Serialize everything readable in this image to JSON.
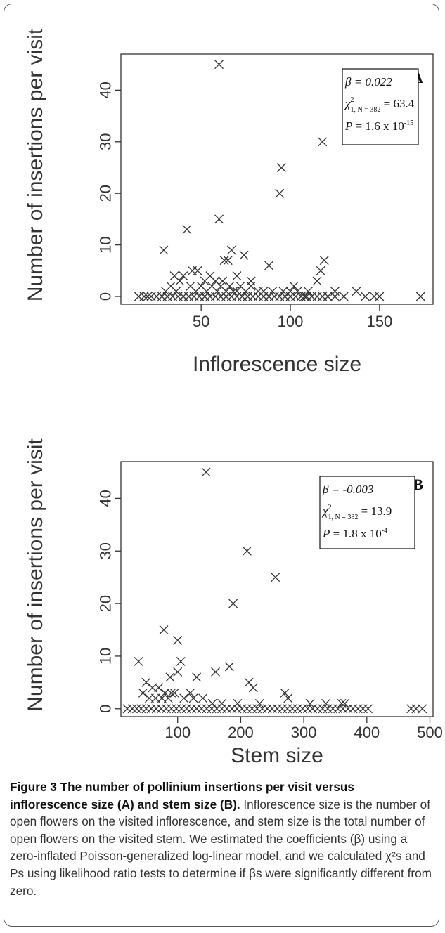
{
  "figure": {
    "caption_title": "Figure 3 The number of pollinium insertions per visit versus inflorescence size (A) and stem size (B).",
    "caption_body": "Inflorescence size is the number of open flowers on the visited inflorescence, and stem size is the total number of open flowers on the visited stem. We estimated the coefficients (β) using a zero-inflated Poisson-generalized log-linear model, and we calculated χ²s and Ps using likelihood ratio tests to determine if βs were significantly different from zero."
  },
  "chart_data": [
    {
      "type": "scatter",
      "panel": "A",
      "xlabel": "Inflorescence size",
      "ylabel": "Number of insertions per visit",
      "xlim": [
        5,
        180
      ],
      "ylim": [
        -1.5,
        47
      ],
      "xticks": [
        50,
        100,
        150
      ],
      "yticks": [
        0,
        10,
        20,
        30,
        40
      ],
      "marker": "x",
      "stats": {
        "beta": "β = 0.022",
        "chi_prefix": "χ",
        "chi_sup": "2",
        "chi_sub": "1, N = 382",
        "chi_value": " = 63.4",
        "p_prefix": "P",
        "p_value": " = 1.6 x 10",
        "p_exp": "-15"
      },
      "points": [
        [
          60,
          45
        ],
        [
          118,
          30
        ],
        [
          95,
          25
        ],
        [
          94,
          20
        ],
        [
          60,
          15
        ],
        [
          42,
          13
        ],
        [
          29,
          9
        ],
        [
          67,
          9
        ],
        [
          88,
          6
        ],
        [
          74,
          8
        ],
        [
          63,
          7
        ],
        [
          65,
          7
        ],
        [
          119,
          7
        ],
        [
          117,
          5
        ],
        [
          115,
          3
        ],
        [
          45,
          5
        ],
        [
          48,
          5
        ],
        [
          35,
          4
        ],
        [
          40,
          4
        ],
        [
          55,
          4
        ],
        [
          70,
          4
        ],
        [
          78,
          3
        ],
        [
          52,
          3
        ],
        [
          58,
          3
        ],
        [
          62,
          3
        ],
        [
          72,
          2
        ],
        [
          66,
          2
        ],
        [
          102,
          2
        ],
        [
          110,
          1
        ],
        [
          125,
          1
        ],
        [
          137,
          1
        ],
        [
          33,
          2
        ],
        [
          38,
          3
        ],
        [
          44,
          2
        ],
        [
          50,
          2
        ],
        [
          56,
          2
        ],
        [
          61,
          2
        ],
        [
          68,
          1
        ],
        [
          75,
          1
        ],
        [
          82,
          1
        ],
        [
          90,
          1
        ],
        [
          96,
          1
        ],
        [
          30,
          1
        ],
        [
          36,
          1
        ],
        [
          47,
          1
        ],
        [
          53,
          1
        ],
        [
          59,
          1
        ],
        [
          64,
          1
        ],
        [
          70,
          1
        ],
        [
          78,
          2
        ],
        [
          85,
          1
        ],
        [
          100,
          1
        ],
        [
          104,
          1
        ],
        [
          108,
          0
        ],
        [
          15,
          0
        ],
        [
          18,
          0
        ],
        [
          20,
          0
        ],
        [
          22,
          0
        ],
        [
          25,
          0
        ],
        [
          28,
          0
        ],
        [
          31,
          0
        ],
        [
          34,
          0
        ],
        [
          37,
          0
        ],
        [
          40,
          0
        ],
        [
          43,
          0
        ],
        [
          46,
          0
        ],
        [
          49,
          0
        ],
        [
          52,
          0
        ],
        [
          55,
          0
        ],
        [
          58,
          0
        ],
        [
          61,
          0
        ],
        [
          64,
          0
        ],
        [
          67,
          0
        ],
        [
          70,
          0
        ],
        [
          73,
          0
        ],
        [
          76,
          0
        ],
        [
          79,
          0
        ],
        [
          82,
          0
        ],
        [
          85,
          0
        ],
        [
          88,
          0
        ],
        [
          91,
          0
        ],
        [
          94,
          0
        ],
        [
          97,
          0
        ],
        [
          100,
          0
        ],
        [
          103,
          0
        ],
        [
          106,
          0
        ],
        [
          109,
          0
        ],
        [
          112,
          0
        ],
        [
          115,
          0
        ],
        [
          118,
          0
        ],
        [
          121,
          0
        ],
        [
          125,
          0
        ],
        [
          130,
          0
        ],
        [
          142,
          0
        ],
        [
          147,
          0
        ],
        [
          150,
          0
        ],
        [
          173,
          0
        ]
      ]
    },
    {
      "type": "scatter",
      "panel": "B",
      "xlabel": "Stem size",
      "ylabel": "Number of insertions per visit",
      "xlim": [
        10,
        505
      ],
      "ylim": [
        -1.5,
        47
      ],
      "xticks": [
        100,
        200,
        300,
        400,
        500
      ],
      "yticks": [
        0,
        10,
        20,
        30,
        40
      ],
      "marker": "x",
      "stats": {
        "beta": "β = -0.003",
        "chi_prefix": "χ",
        "chi_sup": "2",
        "chi_sub": "1, N = 382",
        "chi_value": " = 13.9",
        "p_prefix": "P",
        "p_value": " = 1.8 x 10",
        "p_exp": "-4"
      },
      "points": [
        [
          145,
          45
        ],
        [
          210,
          30
        ],
        [
          255,
          25
        ],
        [
          188,
          20
        ],
        [
          78,
          15
        ],
        [
          100,
          13
        ],
        [
          38,
          9
        ],
        [
          105,
          9
        ],
        [
          182,
          8
        ],
        [
          160,
          7
        ],
        [
          100,
          7
        ],
        [
          88,
          6
        ],
        [
          130,
          6
        ],
        [
          213,
          5
        ],
        [
          220,
          4
        ],
        [
          50,
          5
        ],
        [
          60,
          4
        ],
        [
          70,
          4
        ],
        [
          80,
          3
        ],
        [
          90,
          3
        ],
        [
          120,
          3
        ],
        [
          45,
          3
        ],
        [
          55,
          2
        ],
        [
          65,
          2
        ],
        [
          75,
          2
        ],
        [
          85,
          2
        ],
        [
          95,
          3
        ],
        [
          110,
          2
        ],
        [
          125,
          2
        ],
        [
          140,
          2
        ],
        [
          155,
          1
        ],
        [
          170,
          1
        ],
        [
          195,
          1
        ],
        [
          230,
          1
        ],
        [
          270,
          3
        ],
        [
          275,
          2
        ],
        [
          310,
          1
        ],
        [
          335,
          1
        ],
        [
          365,
          1
        ],
        [
          360,
          1
        ],
        [
          20,
          0
        ],
        [
          28,
          0
        ],
        [
          35,
          0
        ],
        [
          42,
          0
        ],
        [
          50,
          0
        ],
        [
          58,
          0
        ],
        [
          66,
          0
        ],
        [
          74,
          0
        ],
        [
          82,
          0
        ],
        [
          90,
          0
        ],
        [
          98,
          0
        ],
        [
          106,
          0
        ],
        [
          114,
          0
        ],
        [
          122,
          0
        ],
        [
          130,
          0
        ],
        [
          138,
          0
        ],
        [
          146,
          0
        ],
        [
          154,
          0
        ],
        [
          162,
          0
        ],
        [
          170,
          0
        ],
        [
          178,
          0
        ],
        [
          186,
          0
        ],
        [
          194,
          0
        ],
        [
          202,
          0
        ],
        [
          210,
          0
        ],
        [
          218,
          0
        ],
        [
          226,
          0
        ],
        [
          234,
          0
        ],
        [
          242,
          0
        ],
        [
          250,
          0
        ],
        [
          258,
          0
        ],
        [
          266,
          0
        ],
        [
          274,
          0
        ],
        [
          282,
          0
        ],
        [
          290,
          0
        ],
        [
          298,
          0
        ],
        [
          306,
          0
        ],
        [
          314,
          0
        ],
        [
          322,
          0
        ],
        [
          330,
          0
        ],
        [
          338,
          0
        ],
        [
          346,
          0
        ],
        [
          354,
          0
        ],
        [
          362,
          0
        ],
        [
          370,
          0
        ],
        [
          378,
          0
        ],
        [
          386,
          0
        ],
        [
          394,
          0
        ],
        [
          402,
          0
        ],
        [
          470,
          0
        ],
        [
          478,
          0
        ],
        [
          488,
          0
        ]
      ]
    }
  ]
}
